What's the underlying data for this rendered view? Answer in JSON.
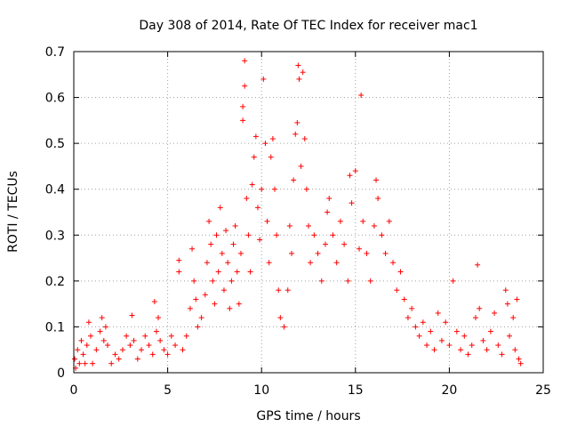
{
  "chart_data": {
    "type": "scatter",
    "title": "Day 308 of 2014, Rate Of TEC Index for receiver mac1",
    "xlabel": "GPS time / hours",
    "ylabel": "ROTI / TECUs",
    "xlim": [
      0,
      25
    ],
    "ylim": [
      0,
      0.7
    ],
    "x_ticks": [
      0,
      5,
      10,
      15,
      20,
      25
    ],
    "y_ticks": [
      0,
      0.1,
      0.2,
      0.3,
      0.4,
      0.5,
      0.6,
      0.7
    ],
    "grid": true,
    "marker": "+",
    "color": "#ff0000",
    "series": [
      {
        "points": [
          [
            0.05,
            0.03
          ],
          [
            0.1,
            0.01
          ],
          [
            0.2,
            0.05
          ],
          [
            0.3,
            0.02
          ],
          [
            0.4,
            0.07
          ],
          [
            0.5,
            0.04
          ],
          [
            0.6,
            0.02
          ],
          [
            0.7,
            0.06
          ],
          [
            0.8,
            0.11
          ],
          [
            0.9,
            0.08
          ],
          [
            1.0,
            0.02
          ],
          [
            1.2,
            0.05
          ],
          [
            1.4,
            0.09
          ],
          [
            1.5,
            0.12
          ],
          [
            1.6,
            0.07
          ],
          [
            1.7,
            0.1
          ],
          [
            1.8,
            0.06
          ],
          [
            2.0,
            0.02
          ],
          [
            2.2,
            0.04
          ],
          [
            2.4,
            0.03
          ],
          [
            2.6,
            0.05
          ],
          [
            2.8,
            0.08
          ],
          [
            3.0,
            0.06
          ],
          [
            3.1,
            0.125
          ],
          [
            3.2,
            0.07
          ],
          [
            3.4,
            0.03
          ],
          [
            3.6,
            0.05
          ],
          [
            3.8,
            0.08
          ],
          [
            4.0,
            0.06
          ],
          [
            4.2,
            0.04
          ],
          [
            4.3,
            0.155
          ],
          [
            4.4,
            0.09
          ],
          [
            4.5,
            0.12
          ],
          [
            4.6,
            0.07
          ],
          [
            4.8,
            0.05
          ],
          [
            5.0,
            0.04
          ],
          [
            5.2,
            0.08
          ],
          [
            5.4,
            0.06
          ],
          [
            5.6,
            0.245
          ],
          [
            5.6,
            0.22
          ],
          [
            5.8,
            0.05
          ],
          [
            6.0,
            0.08
          ],
          [
            6.2,
            0.14
          ],
          [
            6.3,
            0.27
          ],
          [
            6.4,
            0.2
          ],
          [
            6.5,
            0.16
          ],
          [
            6.6,
            0.1
          ],
          [
            6.8,
            0.12
          ],
          [
            7.0,
            0.17
          ],
          [
            7.1,
            0.24
          ],
          [
            7.2,
            0.33
          ],
          [
            7.3,
            0.28
          ],
          [
            7.4,
            0.2
          ],
          [
            7.5,
            0.15
          ],
          [
            7.6,
            0.3
          ],
          [
            7.7,
            0.22
          ],
          [
            7.8,
            0.36
          ],
          [
            7.9,
            0.26
          ],
          [
            8.0,
            0.18
          ],
          [
            8.1,
            0.31
          ],
          [
            8.2,
            0.24
          ],
          [
            8.3,
            0.14
          ],
          [
            8.4,
            0.2
          ],
          [
            8.5,
            0.28
          ],
          [
            8.6,
            0.32
          ],
          [
            8.7,
            0.22
          ],
          [
            8.8,
            0.15
          ],
          [
            8.9,
            0.26
          ],
          [
            9.0,
            0.55
          ],
          [
            9.0,
            0.58
          ],
          [
            9.1,
            0.68
          ],
          [
            9.1,
            0.625
          ],
          [
            9.2,
            0.38
          ],
          [
            9.3,
            0.3
          ],
          [
            9.4,
            0.22
          ],
          [
            9.5,
            0.41
          ],
          [
            9.6,
            0.47
          ],
          [
            9.7,
            0.515
          ],
          [
            9.8,
            0.36
          ],
          [
            9.9,
            0.29
          ],
          [
            10.0,
            0.4
          ],
          [
            10.1,
            0.64
          ],
          [
            10.2,
            0.5
          ],
          [
            10.3,
            0.33
          ],
          [
            10.4,
            0.24
          ],
          [
            10.5,
            0.47
          ],
          [
            10.6,
            0.51
          ],
          [
            10.7,
            0.4
          ],
          [
            10.8,
            0.3
          ],
          [
            10.9,
            0.18
          ],
          [
            11.0,
            0.12
          ],
          [
            11.2,
            0.1
          ],
          [
            11.4,
            0.18
          ],
          [
            11.5,
            0.32
          ],
          [
            11.6,
            0.26
          ],
          [
            11.7,
            0.42
          ],
          [
            11.8,
            0.52
          ],
          [
            11.9,
            0.545
          ],
          [
            11.95,
            0.67
          ],
          [
            12.0,
            0.64
          ],
          [
            12.1,
            0.45
          ],
          [
            12.2,
            0.655
          ],
          [
            12.3,
            0.51
          ],
          [
            12.4,
            0.4
          ],
          [
            12.5,
            0.32
          ],
          [
            12.6,
            0.24
          ],
          [
            12.8,
            0.3
          ],
          [
            13.0,
            0.26
          ],
          [
            13.2,
            0.2
          ],
          [
            13.4,
            0.28
          ],
          [
            13.5,
            0.35
          ],
          [
            13.6,
            0.38
          ],
          [
            13.8,
            0.3
          ],
          [
            14.0,
            0.24
          ],
          [
            14.2,
            0.33
          ],
          [
            14.4,
            0.28
          ],
          [
            14.6,
            0.2
          ],
          [
            14.7,
            0.43
          ],
          [
            14.8,
            0.37
          ],
          [
            15.0,
            0.44
          ],
          [
            15.2,
            0.27
          ],
          [
            15.3,
            0.605
          ],
          [
            15.4,
            0.33
          ],
          [
            15.6,
            0.26
          ],
          [
            15.8,
            0.2
          ],
          [
            16.0,
            0.32
          ],
          [
            16.1,
            0.42
          ],
          [
            16.2,
            0.38
          ],
          [
            16.4,
            0.3
          ],
          [
            16.6,
            0.26
          ],
          [
            16.8,
            0.33
          ],
          [
            17.0,
            0.24
          ],
          [
            17.2,
            0.18
          ],
          [
            17.4,
            0.22
          ],
          [
            17.6,
            0.16
          ],
          [
            17.8,
            0.12
          ],
          [
            18.0,
            0.14
          ],
          [
            18.2,
            0.1
          ],
          [
            18.4,
            0.08
          ],
          [
            18.6,
            0.11
          ],
          [
            18.8,
            0.06
          ],
          [
            19.0,
            0.09
          ],
          [
            19.2,
            0.05
          ],
          [
            19.4,
            0.13
          ],
          [
            19.6,
            0.07
          ],
          [
            19.8,
            0.11
          ],
          [
            20.0,
            0.06
          ],
          [
            20.2,
            0.2
          ],
          [
            20.4,
            0.09
          ],
          [
            20.6,
            0.05
          ],
          [
            20.8,
            0.08
          ],
          [
            21.0,
            0.04
          ],
          [
            21.2,
            0.06
          ],
          [
            21.4,
            0.12
          ],
          [
            21.5,
            0.235
          ],
          [
            21.6,
            0.14
          ],
          [
            21.8,
            0.07
          ],
          [
            22.0,
            0.05
          ],
          [
            22.2,
            0.09
          ],
          [
            22.4,
            0.13
          ],
          [
            22.6,
            0.06
          ],
          [
            22.8,
            0.04
          ],
          [
            23.0,
            0.18
          ],
          [
            23.1,
            0.15
          ],
          [
            23.2,
            0.08
          ],
          [
            23.4,
            0.12
          ],
          [
            23.5,
            0.05
          ],
          [
            23.6,
            0.16
          ],
          [
            23.7,
            0.03
          ],
          [
            23.8,
            0.02
          ]
        ]
      }
    ]
  }
}
